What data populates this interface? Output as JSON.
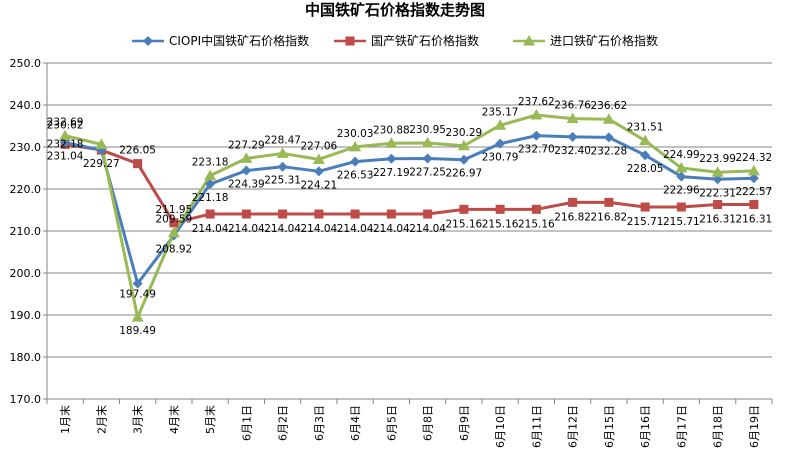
{
  "chart_data": {
    "type": "line",
    "title": "中国铁矿石价格指数走势图",
    "xlabel": "",
    "ylabel": "",
    "ylim": [
      170,
      250
    ],
    "yticks": [
      "170.0",
      "180.0",
      "190.0",
      "200.0",
      "210.0",
      "220.0",
      "230.0",
      "240.0",
      "250.0"
    ],
    "grid": "horizontal",
    "legend_position": "top",
    "categories": [
      "1月末",
      "2月末",
      "3月末",
      "4月末",
      "5月末",
      "6月1日",
      "6月2日",
      "6月3日",
      "6月4日",
      "6月5日",
      "6月8日",
      "6月9日",
      "6月10日",
      "6月11日",
      "6月12日",
      "6月15日",
      "6月16日",
      "6月17日",
      "6月18日",
      "6月19日"
    ],
    "series": [
      {
        "name": "CIOPI中国铁矿石价格指数",
        "color": "#4a7ebb",
        "marker": "diamond",
        "values": [
          231.04,
          229.27,
          197.49,
          208.92,
          221.18,
          224.39,
          225.31,
          224.21,
          226.53,
          227.19,
          227.25,
          226.97,
          230.79,
          232.7,
          232.4,
          232.28,
          228.05,
          222.96,
          222.31,
          222.57
        ],
        "labels": [
          "231.04",
          "229.27",
          "197.49",
          "208.92",
          "221.18",
          "224.39",
          "225.31",
          "224.21",
          "226.53",
          "227.19",
          "227.25",
          "226.97",
          "230.79",
          "232.70",
          "232.40",
          "232.28",
          "228.05",
          "222.96",
          "222.31",
          "222.57"
        ]
      },
      {
        "name": "国产铁矿石价格指数",
        "color": "#be4b48",
        "marker": "square",
        "values": [
          230.62,
          229.27,
          226.05,
          211.95,
          214.04,
          214.04,
          214.04,
          214.04,
          214.04,
          214.04,
          214.04,
          215.16,
          215.16,
          215.16,
          216.82,
          216.82,
          215.71,
          215.71,
          216.31,
          216.31
        ],
        "labels": [
          "230.62",
          "",
          "226.05",
          "211.95",
          "214.04",
          "214.04",
          "214.04",
          "214.04",
          "214.04",
          "214.04",
          "214.04",
          "215.16",
          "215.16",
          "215.16",
          "216.82",
          "216.82",
          "215.71",
          "215.71",
          "216.31",
          "216.31"
        ]
      },
      {
        "name": "进口铁矿石价格指数",
        "color": "#98b954",
        "marker": "triangle",
        "values": [
          232.69,
          230.62,
          189.49,
          209.59,
          223.18,
          227.29,
          228.47,
          227.06,
          230.03,
          230.88,
          230.95,
          230.29,
          235.17,
          237.62,
          236.76,
          236.62,
          231.51,
          224.99,
          223.99,
          224.32
        ],
        "labels": [
          "232.69",
          "",
          "189.49",
          "209.59",
          "223.18",
          "227.29",
          "228.47",
          "227.06",
          "230.03",
          "230.88",
          "230.95",
          "230.29",
          "235.17",
          "237.62",
          "236.76",
          "236.62",
          "231.51",
          "224.99",
          "223.99",
          "224.32"
        ]
      }
    ],
    "extra_labels": [
      "232.18"
    ]
  }
}
